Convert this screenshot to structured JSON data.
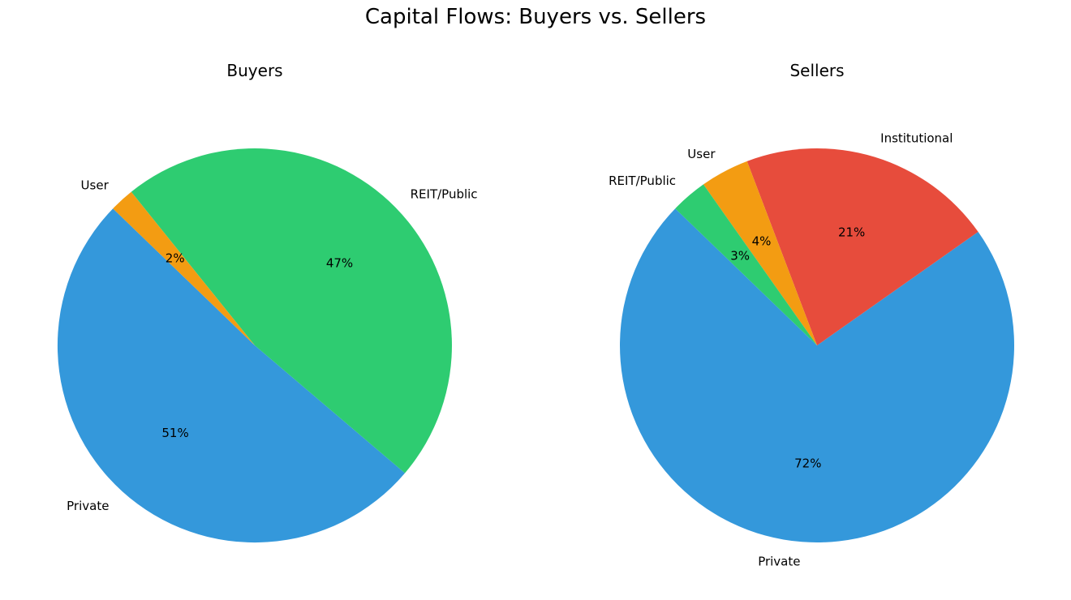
{
  "chart_data": {
    "type": "pie",
    "title": "Capital Flows: Buyers vs. Sellers",
    "charts": [
      {
        "title": "Buyers",
        "slices": [
          {
            "label": "Private",
            "value": 51,
            "pct_label": "51%",
            "color": "#3498db"
          },
          {
            "label": "REIT/Public",
            "value": 47,
            "pct_label": "47%",
            "color": "#2ecc71"
          },
          {
            "label": "User",
            "value": 2,
            "pct_label": "2%",
            "color": "#f39c12"
          }
        ]
      },
      {
        "title": "Sellers",
        "slices": [
          {
            "label": "Private",
            "value": 72,
            "pct_label": "72%",
            "color": "#3498db"
          },
          {
            "label": "Institutional",
            "value": 21,
            "pct_label": "21%",
            "color": "#e74c3c"
          },
          {
            "label": "User",
            "value": 4,
            "pct_label": "4%",
            "color": "#f39c12"
          },
          {
            "label": "REIT/Public",
            "value": 3,
            "pct_label": "3%",
            "color": "#2ecc71"
          }
        ]
      }
    ]
  }
}
